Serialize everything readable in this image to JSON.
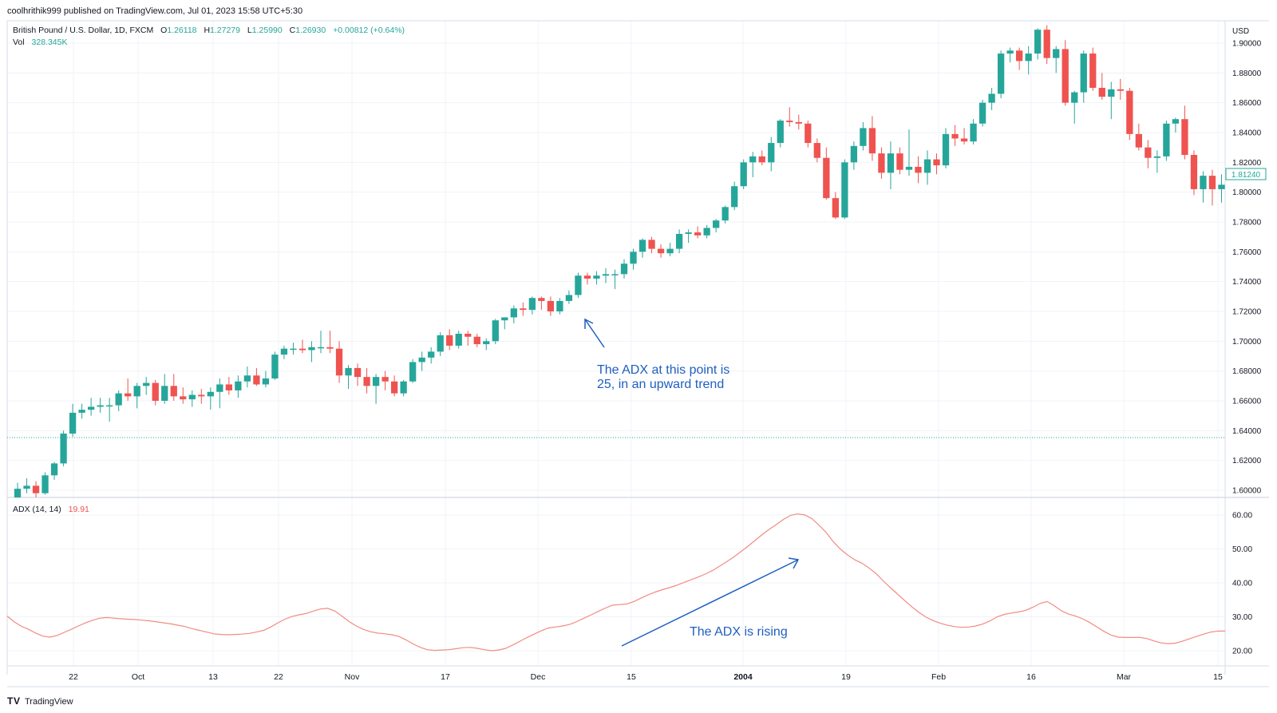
{
  "header": {
    "publish_line": "coolhrithik999 published on TradingView.com, Jul 01, 2023 15:58 UTC+5:30",
    "symbol": "British Pound / U.S. Dollar, 1D, FXCM",
    "ohlc": {
      "o_label": "O",
      "o": "1.26118",
      "h_label": "H",
      "h": "1.27279",
      "l_label": "L",
      "l": "1.25990",
      "c_label": "C",
      "c": "1.26930",
      "change": "+0.00812 (+0.64%)"
    },
    "vol_label": "Vol",
    "vol_value": "328.345K"
  },
  "colors": {
    "up": "#26a69a",
    "down": "#ef5350",
    "adx_line": "#f28b82",
    "annotation": "#1f5fbf",
    "grid": "#f0f3fa",
    "axis_text": "#131722"
  },
  "price_axis": {
    "currency": "USD",
    "current_price": "1.81240"
  },
  "adx_pane": {
    "label": "ADX (14, 14)",
    "value": "19.91"
  },
  "annotations": {
    "adx_point_line1": "The ADX at this point is",
    "adx_point_line2": "25, in an upward trend",
    "adx_rising": "The ADX is rising"
  },
  "footer": {
    "brand": "TradingView"
  },
  "chart_data": [
    {
      "type": "candlestick",
      "title": "British Pound / U.S. Dollar, 1D, FXCM",
      "ylabel": "USD",
      "ylim": [
        1.59,
        1.915
      ],
      "yticks": [
        "1.60000",
        "1.62000",
        "1.64000",
        "1.66000",
        "1.68000",
        "1.70000",
        "1.72000",
        "1.74000",
        "1.76000",
        "1.78000",
        "1.80000",
        "1.82000",
        "1.84000",
        "1.86000",
        "1.88000",
        "1.90000"
      ],
      "xticks": [
        "22",
        "Oct",
        "13",
        "22",
        "Nov",
        "17",
        "Dec",
        "15",
        "2004",
        "19",
        "Feb",
        "16",
        "Mar",
        "15"
      ],
      "grid": true,
      "candles": [
        [
          1.595,
          1.605,
          1.592,
          1.601
        ],
        [
          1.601,
          1.608,
          1.598,
          1.603
        ],
        [
          1.603,
          1.606,
          1.594,
          1.598
        ],
        [
          1.598,
          1.612,
          1.597,
          1.61
        ],
        [
          1.61,
          1.619,
          1.607,
          1.618
        ],
        [
          1.618,
          1.64,
          1.616,
          1.638
        ],
        [
          1.638,
          1.658,
          1.636,
          1.652
        ],
        [
          1.652,
          1.658,
          1.648,
          1.654
        ],
        [
          1.654,
          1.662,
          1.65,
          1.656
        ],
        [
          1.656,
          1.662,
          1.652,
          1.657
        ],
        [
          1.657,
          1.662,
          1.646,
          1.657
        ],
        [
          1.657,
          1.667,
          1.653,
          1.665
        ],
        [
          1.665,
          1.675,
          1.66,
          1.663
        ],
        [
          1.663,
          1.672,
          1.655,
          1.67
        ],
        [
          1.67,
          1.676,
          1.664,
          1.672
        ],
        [
          1.672,
          1.674,
          1.657,
          1.66
        ],
        [
          1.66,
          1.678,
          1.658,
          1.67
        ],
        [
          1.67,
          1.678,
          1.66,
          1.663
        ],
        [
          1.663,
          1.669,
          1.658,
          1.661
        ],
        [
          1.661,
          1.667,
          1.656,
          1.664
        ],
        [
          1.664,
          1.668,
          1.658,
          1.663
        ],
        [
          1.663,
          1.669,
          1.654,
          1.666
        ],
        [
          1.666,
          1.675,
          1.655,
          1.671
        ],
        [
          1.671,
          1.676,
          1.664,
          1.667
        ],
        [
          1.667,
          1.677,
          1.662,
          1.673
        ],
        [
          1.673,
          1.683,
          1.669,
          1.677
        ],
        [
          1.677,
          1.682,
          1.67,
          1.671
        ],
        [
          1.671,
          1.68,
          1.669,
          1.675
        ],
        [
          1.675,
          1.693,
          1.674,
          1.691
        ],
        [
          1.691,
          1.697,
          1.688,
          1.695
        ],
        [
          1.695,
          1.699,
          1.691,
          1.695
        ],
        [
          1.695,
          1.701,
          1.692,
          1.694
        ],
        [
          1.694,
          1.7,
          1.686,
          1.696
        ],
        [
          1.696,
          1.707,
          1.692,
          1.696
        ],
        [
          1.696,
          1.707,
          1.692,
          1.695
        ],
        [
          1.695,
          1.7,
          1.672,
          1.677
        ],
        [
          1.677,
          1.684,
          1.668,
          1.682
        ],
        [
          1.682,
          1.685,
          1.67,
          1.676
        ],
        [
          1.676,
          1.682,
          1.665,
          1.67
        ],
        [
          1.67,
          1.678,
          1.658,
          1.676
        ],
        [
          1.676,
          1.68,
          1.667,
          1.673
        ],
        [
          1.673,
          1.677,
          1.663,
          1.665
        ],
        [
          1.665,
          1.674,
          1.663,
          1.673
        ],
        [
          1.673,
          1.688,
          1.672,
          1.686
        ],
        [
          1.686,
          1.693,
          1.68,
          1.689
        ],
        [
          1.689,
          1.696,
          1.685,
          1.693
        ],
        [
          1.693,
          1.706,
          1.69,
          1.704
        ],
        [
          1.704,
          1.708,
          1.694,
          1.697
        ],
        [
          1.697,
          1.707,
          1.695,
          1.705
        ],
        [
          1.705,
          1.707,
          1.697,
          1.703
        ],
        [
          1.703,
          1.705,
          1.696,
          1.698
        ],
        [
          1.698,
          1.702,
          1.694,
          1.7
        ],
        [
          1.7,
          1.715,
          1.698,
          1.714
        ],
        [
          1.714,
          1.716,
          1.708,
          1.716
        ],
        [
          1.716,
          1.724,
          1.712,
          1.722
        ],
        [
          1.722,
          1.726,
          1.717,
          1.721
        ],
        [
          1.721,
          1.73,
          1.718,
          1.729
        ],
        [
          1.729,
          1.73,
          1.721,
          1.727
        ],
        [
          1.727,
          1.73,
          1.717,
          1.72
        ],
        [
          1.72,
          1.729,
          1.718,
          1.727
        ],
        [
          1.727,
          1.734,
          1.725,
          1.731
        ],
        [
          1.731,
          1.746,
          1.729,
          1.744
        ],
        [
          1.744,
          1.746,
          1.738,
          1.742
        ],
        [
          1.742,
          1.747,
          1.738,
          1.744
        ],
        [
          1.744,
          1.749,
          1.739,
          1.745
        ],
        [
          1.745,
          1.748,
          1.735,
          1.745
        ],
        [
          1.745,
          1.755,
          1.742,
          1.752
        ],
        [
          1.752,
          1.762,
          1.748,
          1.76
        ],
        [
          1.76,
          1.769,
          1.756,
          1.768
        ],
        [
          1.768,
          1.77,
          1.759,
          1.762
        ],
        [
          1.762,
          1.765,
          1.756,
          1.759
        ],
        [
          1.759,
          1.766,
          1.757,
          1.762
        ],
        [
          1.762,
          1.775,
          1.759,
          1.772
        ],
        [
          1.772,
          1.775,
          1.766,
          1.773
        ],
        [
          1.773,
          1.777,
          1.769,
          1.771
        ],
        [
          1.771,
          1.778,
          1.769,
          1.776
        ],
        [
          1.776,
          1.782,
          1.773,
          1.781
        ],
        [
          1.781,
          1.791,
          1.779,
          1.79
        ],
        [
          1.79,
          1.807,
          1.788,
          1.804
        ],
        [
          1.804,
          1.822,
          1.802,
          1.82
        ],
        [
          1.82,
          1.827,
          1.81,
          1.824
        ],
        [
          1.824,
          1.828,
          1.818,
          1.82
        ],
        [
          1.82,
          1.837,
          1.814,
          1.833
        ],
        [
          1.833,
          1.849,
          1.83,
          1.848
        ],
        [
          1.848,
          1.857,
          1.844,
          1.847
        ],
        [
          1.847,
          1.852,
          1.842,
          1.846
        ],
        [
          1.846,
          1.848,
          1.83,
          1.833
        ],
        [
          1.833,
          1.836,
          1.82,
          1.823
        ],
        [
          1.823,
          1.83,
          1.795,
          1.796
        ],
        [
          1.796,
          1.8,
          1.782,
          1.783
        ],
        [
          1.783,
          1.822,
          1.782,
          1.82
        ],
        [
          1.82,
          1.834,
          1.815,
          1.831
        ],
        [
          1.831,
          1.847,
          1.828,
          1.843
        ],
        [
          1.843,
          1.851,
          1.821,
          1.826
        ],
        [
          1.826,
          1.83,
          1.809,
          1.813
        ],
        [
          1.813,
          1.834,
          1.802,
          1.826
        ],
        [
          1.826,
          1.83,
          1.812,
          1.815
        ],
        [
          1.815,
          1.842,
          1.811,
          1.817
        ],
        [
          1.817,
          1.824,
          1.806,
          1.813
        ],
        [
          1.813,
          1.828,
          1.805,
          1.822
        ],
        [
          1.822,
          1.826,
          1.812,
          1.818
        ],
        [
          1.818,
          1.843,
          1.816,
          1.839
        ],
        [
          1.839,
          1.845,
          1.831,
          1.836
        ],
        [
          1.836,
          1.843,
          1.832,
          1.834
        ],
        [
          1.834,
          1.849,
          1.832,
          1.846
        ],
        [
          1.846,
          1.862,
          1.844,
          1.86
        ],
        [
          1.86,
          1.87,
          1.855,
          1.866
        ],
        [
          1.866,
          1.895,
          1.863,
          1.893
        ],
        [
          1.893,
          1.897,
          1.887,
          1.895
        ],
        [
          1.895,
          1.897,
          1.882,
          1.888
        ],
        [
          1.888,
          1.898,
          1.879,
          1.893
        ],
        [
          1.893,
          1.91,
          1.889,
          1.909
        ],
        [
          1.909,
          1.912,
          1.886,
          1.89
        ],
        [
          1.89,
          1.898,
          1.88,
          1.896
        ],
        [
          1.896,
          1.902,
          1.858,
          1.86
        ],
        [
          1.86,
          1.868,
          1.846,
          1.867
        ],
        [
          1.867,
          1.895,
          1.86,
          1.893
        ],
        [
          1.893,
          1.897,
          1.868,
          1.87
        ],
        [
          1.87,
          1.88,
          1.862,
          1.864
        ],
        [
          1.864,
          1.874,
          1.849,
          1.869
        ],
        [
          1.869,
          1.876,
          1.862,
          1.868
        ],
        [
          1.868,
          1.87,
          1.835,
          1.839
        ],
        [
          1.839,
          1.846,
          1.828,
          1.83
        ],
        [
          1.83,
          1.835,
          1.816,
          1.823
        ],
        [
          1.823,
          1.828,
          1.813,
          1.824
        ],
        [
          1.824,
          1.848,
          1.821,
          1.846
        ],
        [
          1.846,
          1.85,
          1.84,
          1.849
        ],
        [
          1.849,
          1.858,
          1.822,
          1.825
        ],
        [
          1.825,
          1.828,
          1.798,
          1.802
        ],
        [
          1.802,
          1.814,
          1.793,
          1.811
        ],
        [
          1.811,
          1.815,
          1.791,
          1.802
        ],
        [
          1.802,
          1.812,
          1.793,
          1.805
        ],
        [
          1.805,
          1.815,
          1.802,
          1.812
        ]
      ]
    },
    {
      "type": "line",
      "title": "ADX (14, 14)",
      "ylim": [
        15,
        62
      ],
      "yticks": [
        "20.00",
        "30.00",
        "40.00",
        "50.00",
        "60.00"
      ],
      "series": [
        {
          "values": [
            30.2,
            28.5,
            27.2,
            26.3,
            25.2,
            24.3,
            24.0,
            24.5,
            25.4,
            26.3,
            27.3,
            28.2,
            29.0,
            29.6,
            29.8,
            29.6,
            29.4,
            29.3,
            29.2,
            29.0,
            28.8,
            28.5,
            28.2,
            27.9,
            27.5,
            27.1,
            26.5,
            26.0,
            25.5,
            25.0,
            24.8,
            24.7,
            24.8,
            24.9,
            25.1,
            25.5,
            26.0,
            27.0,
            28.2,
            29.3,
            30.1,
            30.6,
            31.0,
            31.7,
            32.3,
            32.5,
            31.7,
            30.2,
            28.6,
            27.3,
            26.3,
            25.6,
            25.2,
            25.0,
            24.7,
            24.2,
            23.2,
            22.0,
            21.0,
            20.3,
            20.1,
            20.2,
            20.3,
            20.6,
            20.9,
            21.0,
            20.7,
            20.3,
            20.0,
            20.2,
            20.7,
            21.7,
            22.8,
            23.9,
            24.9,
            25.9,
            26.7,
            27.0,
            27.3,
            27.8,
            28.6,
            29.6,
            30.6,
            31.6,
            32.6,
            33.4,
            33.6,
            33.8,
            34.5,
            35.5,
            36.5,
            37.3,
            38.0,
            38.6,
            39.3,
            40.1,
            40.9,
            41.7,
            42.6,
            43.6,
            44.9,
            46.2,
            47.6,
            49.2,
            50.8,
            52.5,
            54.2,
            55.8,
            57.2,
            58.7,
            59.9,
            60.3,
            60.0,
            58.9,
            57.0,
            54.8,
            52.1,
            49.9,
            48.2,
            46.8,
            45.8,
            44.4,
            42.7,
            40.6,
            38.6,
            36.7,
            34.8,
            33.0,
            31.3,
            29.9,
            28.9,
            28.1,
            27.5,
            27.1,
            26.9,
            27.0,
            27.3,
            27.9,
            28.8,
            30.0,
            30.7,
            31.1,
            31.4,
            31.9,
            32.8,
            33.9,
            34.5,
            33.3,
            31.8,
            30.8,
            30.2,
            29.4,
            28.3,
            27.0,
            25.7,
            24.6,
            24.0,
            23.9,
            23.9,
            23.9,
            23.6,
            22.9,
            22.3,
            22.1,
            22.2,
            22.8,
            23.5,
            24.2,
            24.9,
            25.5,
            25.8,
            25.8
          ]
        }
      ]
    }
  ]
}
